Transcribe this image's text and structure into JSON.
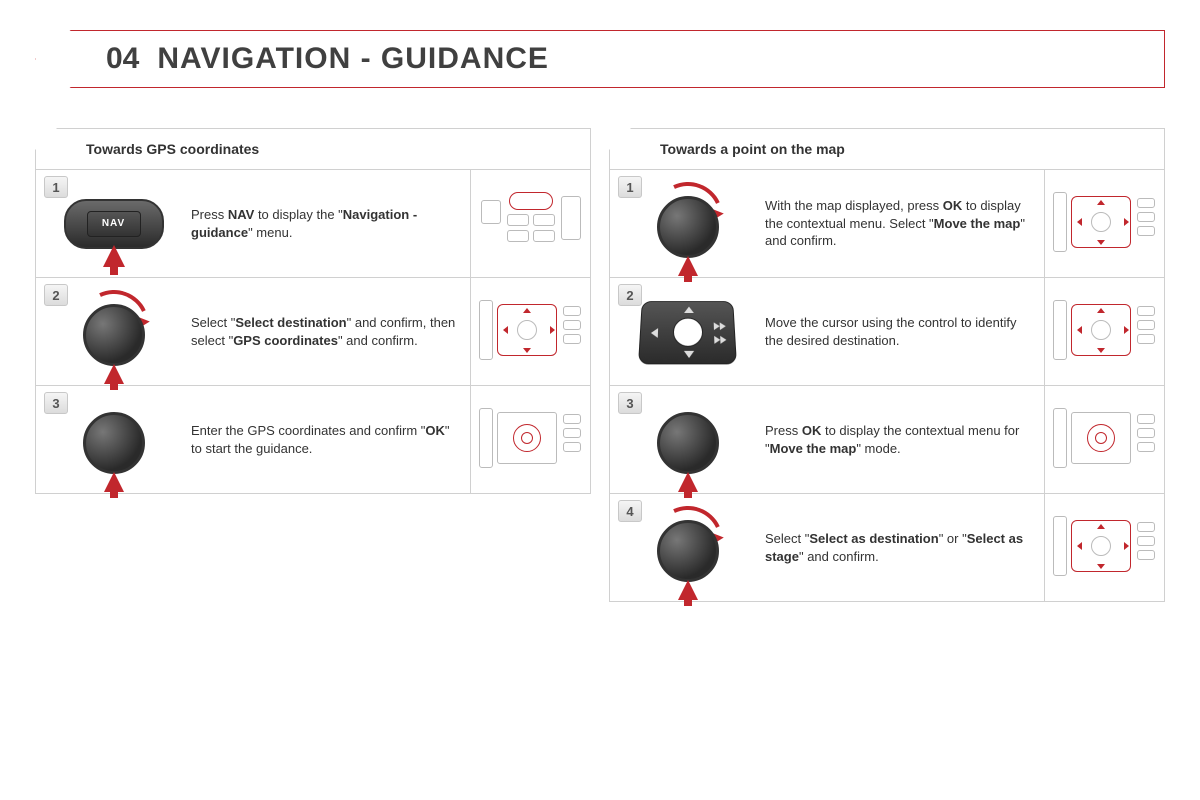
{
  "page": {
    "number": "04",
    "title": "NAVIGATION - GUIDANCE",
    "accent_color": "#c1272d",
    "border_color": "#d0d0d0",
    "text_color": "#333333"
  },
  "left": {
    "heading": "Towards GPS coordinates",
    "steps": [
      {
        "n": "1",
        "control": "nav-button",
        "curve": false,
        "thumb": "console-a",
        "thumb_highlight": "nav",
        "text_parts": [
          "Press ",
          "NAV",
          " to display the \"",
          "Navigation - guidance",
          "\" menu."
        ]
      },
      {
        "n": "2",
        "control": "dial",
        "curve": true,
        "thumb": "console-b",
        "thumb_highlight": "dpad",
        "text_parts": [
          "Select \"",
          "Select destination",
          "\" and confirm, then select \"",
          "GPS coordinates",
          "\" and confirm."
        ]
      },
      {
        "n": "3",
        "control": "dial",
        "curve": false,
        "thumb": "console-c",
        "thumb_highlight": "dial",
        "text_parts": [
          "Enter the GPS coordinates and confirm \"",
          "OK",
          "\" to start the guidance."
        ]
      }
    ]
  },
  "right": {
    "heading": "Towards a point on the map",
    "steps": [
      {
        "n": "1",
        "control": "dial",
        "curve": true,
        "thumb": "console-b",
        "thumb_highlight": "dpad",
        "text_parts": [
          "With the map displayed, press ",
          "OK",
          " to display the contextual menu. Select \"",
          "Move the map",
          "\" and confirm."
        ]
      },
      {
        "n": "2",
        "control": "dpad",
        "curve": false,
        "thumb": "console-b",
        "thumb_highlight": "dpad",
        "text_parts": [
          "Move the cursor using the control to identify the desired destination."
        ]
      },
      {
        "n": "3",
        "control": "dial",
        "curve": false,
        "thumb": "console-c",
        "thumb_highlight": "dial",
        "text_parts": [
          "Press ",
          "OK",
          " to display the contextual menu for \"",
          "Move the map",
          "\" mode."
        ]
      },
      {
        "n": "4",
        "control": "dial",
        "curve": true,
        "thumb": "console-b",
        "thumb_highlight": "dpad",
        "text_parts": [
          "Select \"",
          "Select as destination",
          "\" or \"",
          "Select as stage",
          "\" and confirm."
        ]
      }
    ]
  }
}
